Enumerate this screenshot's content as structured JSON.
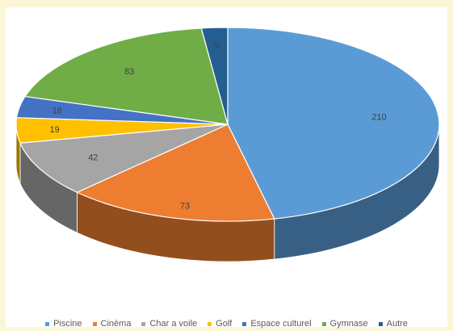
{
  "chart_data": {
    "type": "pie",
    "variant": "3d",
    "categories": [
      "Piscine",
      "Cinéma",
      "Char a voile",
      "Golf",
      "Espace culturel",
      "Gymnase",
      "Autre"
    ],
    "values": [
      210,
      73,
      42,
      19,
      16,
      83,
      9
    ],
    "colors": [
      "#5b9bd5",
      "#ed7d31",
      "#a5a5a5",
      "#ffc000",
      "#4472c4",
      "#70ad47",
      "#255e91"
    ],
    "data_labels": [
      "210",
      "73",
      "42",
      "19",
      "16",
      "83",
      "9"
    ],
    "legend_position": "bottom"
  }
}
